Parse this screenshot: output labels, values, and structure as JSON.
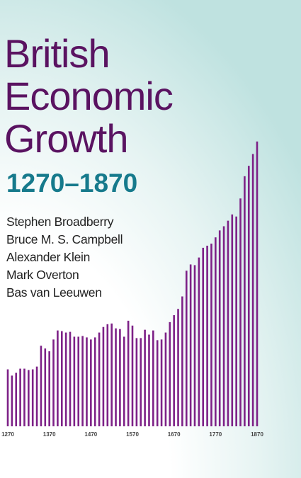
{
  "cover": {
    "title_lines": [
      "British",
      "Economic",
      "Growth"
    ],
    "years": "1270–1870",
    "authors": [
      "Stephen Broadberry",
      "Bruce M. S. Campbell",
      "Alexander Klein",
      "Mark Overton",
      "Bas van Leeuwen"
    ],
    "colors": {
      "title": "#5a1361",
      "years": "#167a8c",
      "bars": "#7d2187"
    }
  },
  "chart_data": {
    "type": "bar",
    "x_ticks": [
      "1270",
      "1370",
      "1470",
      "1570",
      "1670",
      "1770",
      "1870"
    ],
    "x": [
      1270,
      1280,
      1290,
      1300,
      1310,
      1320,
      1330,
      1340,
      1350,
      1360,
      1370,
      1380,
      1390,
      1400,
      1410,
      1420,
      1430,
      1440,
      1450,
      1460,
      1470,
      1480,
      1490,
      1500,
      1510,
      1520,
      1530,
      1540,
      1550,
      1560,
      1570,
      1580,
      1590,
      1600,
      1610,
      1620,
      1630,
      1640,
      1650,
      1660,
      1670,
      1680,
      1690,
      1700,
      1710,
      1720,
      1730,
      1740,
      1750,
      1760,
      1770,
      1780,
      1790,
      1800,
      1810,
      1820,
      1830,
      1840,
      1850,
      1860,
      1870
    ],
    "values": [
      82,
      73,
      77,
      83,
      83,
      81,
      82,
      86,
      116,
      112,
      108,
      125,
      138,
      137,
      135,
      136,
      129,
      129,
      130,
      128,
      125,
      128,
      135,
      143,
      147,
      148,
      141,
      140,
      129,
      152,
      145,
      127,
      127,
      139,
      132,
      138,
      124,
      125,
      135,
      150,
      160,
      169,
      187,
      224,
      233,
      232,
      243,
      257,
      260,
      263,
      272,
      282,
      288,
      296,
      305,
      302,
      328,
      360,
      375,
      392,
      410
    ],
    "ylim": [
      0,
      420
    ],
    "grid": false
  }
}
